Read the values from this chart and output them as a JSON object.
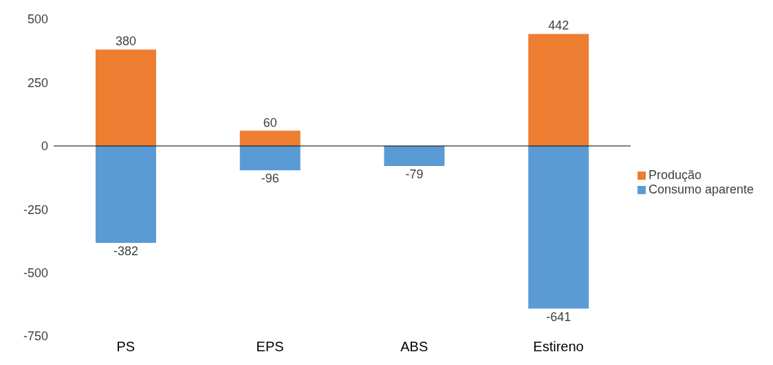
{
  "chart_data": {
    "type": "bar",
    "categories": [
      "PS",
      "EPS",
      "ABS",
      "Estireno"
    ],
    "series": [
      {
        "name": "Produção",
        "color": "#ed7d31",
        "values": [
          380,
          60,
          null,
          442
        ]
      },
      {
        "name": "Consumo aparente",
        "color": "#5b9bd5",
        "values": [
          -382,
          -96,
          -79,
          -641
        ]
      }
    ],
    "stacked": true,
    "ylim": [
      -750,
      500
    ],
    "yticks": [
      -750,
      -500,
      -250,
      0,
      250,
      500
    ],
    "data_labels": true,
    "legend": "right"
  }
}
